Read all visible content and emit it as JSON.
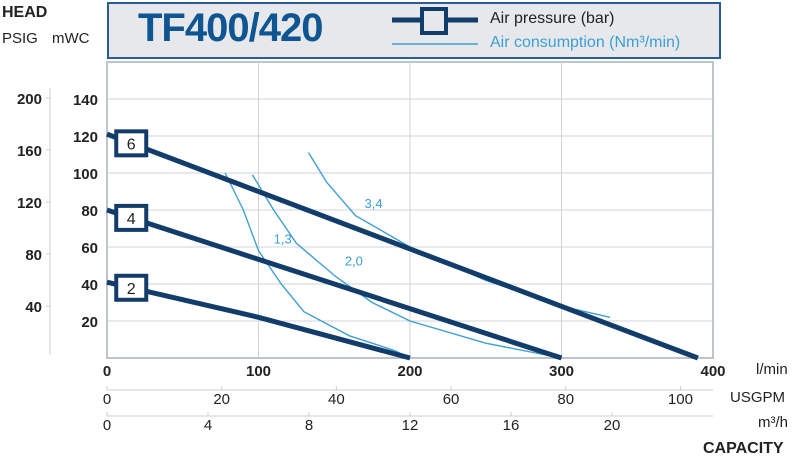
{
  "header": {
    "title": "TF400/420",
    "legend_pressure": "Air pressure (bar)",
    "legend_consumption": "Air consumption (Nm³/min)"
  },
  "axis_titles": {
    "head": "HEAD",
    "psig": "PSIG",
    "mwc": "mWC",
    "lmin": "l/min",
    "usgpm": "USGPM",
    "m3h": "m³/h",
    "capacity": "CAPACITY"
  },
  "colors": {
    "pressure": "#123d6a",
    "consumption": "#3e9fd2",
    "grid": "#cfd3d8",
    "header_bg": "#e6e8ec",
    "title": "#0e5592"
  },
  "chart_data": {
    "type": "line",
    "title": "TF400/420",
    "xlabel": "CAPACITY",
    "ylabel": "HEAD",
    "xlim": [
      0,
      400
    ],
    "ylim": [
      0,
      140
    ],
    "grid": true,
    "x_ticks_lmin": [
      "0",
      "100",
      "200",
      "300",
      "400"
    ],
    "x_ticks_usgpm": [
      "0",
      "20",
      "40",
      "60",
      "80",
      "100"
    ],
    "x_ticks_m3h": [
      "0",
      "4",
      "8",
      "12",
      "16",
      "20"
    ],
    "y_ticks_mwc": [
      "20",
      "40",
      "60",
      "80",
      "100",
      "120",
      "140"
    ],
    "y_ticks_psig": [
      "40",
      "80",
      "120",
      "160",
      "200"
    ],
    "pressure_series": [
      {
        "name": "6",
        "x": [
          0,
          390
        ],
        "y": [
          121,
          0
        ]
      },
      {
        "name": "4",
        "x": [
          0,
          300
        ],
        "y": [
          80,
          0
        ]
      },
      {
        "name": "2",
        "x": [
          0,
          100,
          200
        ],
        "y": [
          41,
          22,
          0
        ]
      }
    ],
    "consumption_series": [
      {
        "name": "1,3",
        "x": [
          78,
          90,
          100,
          115,
          130,
          160,
          190,
          200
        ],
        "y": [
          100,
          80,
          58,
          40,
          25,
          12,
          4,
          0
        ]
      },
      {
        "name": "2,0",
        "x": [
          96,
          110,
          125,
          151,
          175,
          200,
          250,
          300
        ],
        "y": [
          99,
          80,
          62,
          44,
          30,
          20,
          8,
          0
        ]
      },
      {
        "name": "3,4",
        "x": [
          133,
          145,
          164,
          200,
          250,
          300,
          332
        ],
        "y": [
          111,
          95,
          77,
          60,
          42,
          28,
          22
        ]
      }
    ]
  }
}
